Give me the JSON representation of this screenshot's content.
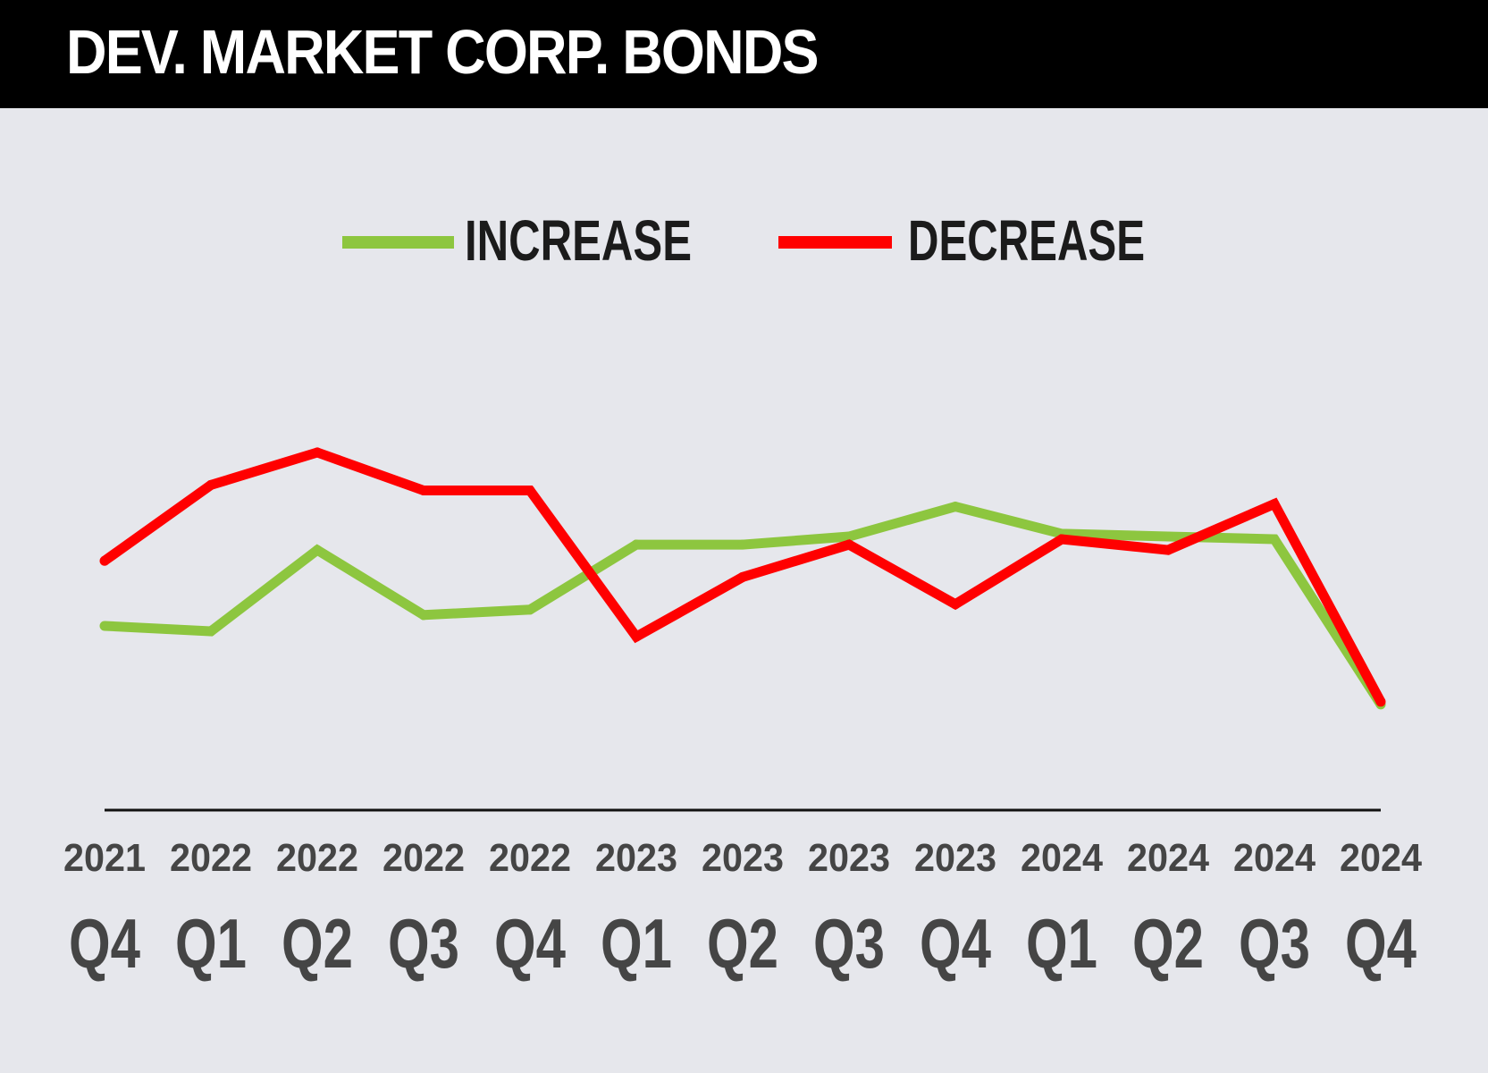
{
  "header": {
    "title": "DEV. MARKET CORP. BONDS"
  },
  "colors": {
    "background": "#e6e7ec",
    "header_bg": "#000000",
    "increase": "#8dc63f",
    "decrease": "#ff0000",
    "axis": "#111111",
    "tick_text": "#454545"
  },
  "chart_data": {
    "type": "line",
    "categories": [
      {
        "year": "2021",
        "quarter": "Q4"
      },
      {
        "year": "2022",
        "quarter": "Q1"
      },
      {
        "year": "2022",
        "quarter": "Q2"
      },
      {
        "year": "2022",
        "quarter": "Q3"
      },
      {
        "year": "2022",
        "quarter": "Q4"
      },
      {
        "year": "2023",
        "quarter": "Q1"
      },
      {
        "year": "2023",
        "quarter": "Q2"
      },
      {
        "year": "2023",
        "quarter": "Q3"
      },
      {
        "year": "2023",
        "quarter": "Q4"
      },
      {
        "year": "2024",
        "quarter": "Q1"
      },
      {
        "year": "2024",
        "quarter": "Q2"
      },
      {
        "year": "2024",
        "quarter": "Q3"
      },
      {
        "year": "2024",
        "quarter": "Q4"
      }
    ],
    "series": [
      {
        "name": "INCREASE",
        "color": "#8dc63f",
        "values": [
          34,
          33,
          48,
          36,
          37,
          49,
          49,
          50.5,
          56,
          51,
          50.5,
          50,
          19.5
        ]
      },
      {
        "name": "DECREASE",
        "color": "#ff0000",
        "values": [
          46,
          60,
          66,
          59,
          59,
          32,
          43,
          49,
          38,
          50,
          48,
          56.5,
          20
        ]
      }
    ],
    "legend": "top-center",
    "grid": false,
    "ylim": [
      0,
      100
    ],
    "y_axis_shown": false
  }
}
